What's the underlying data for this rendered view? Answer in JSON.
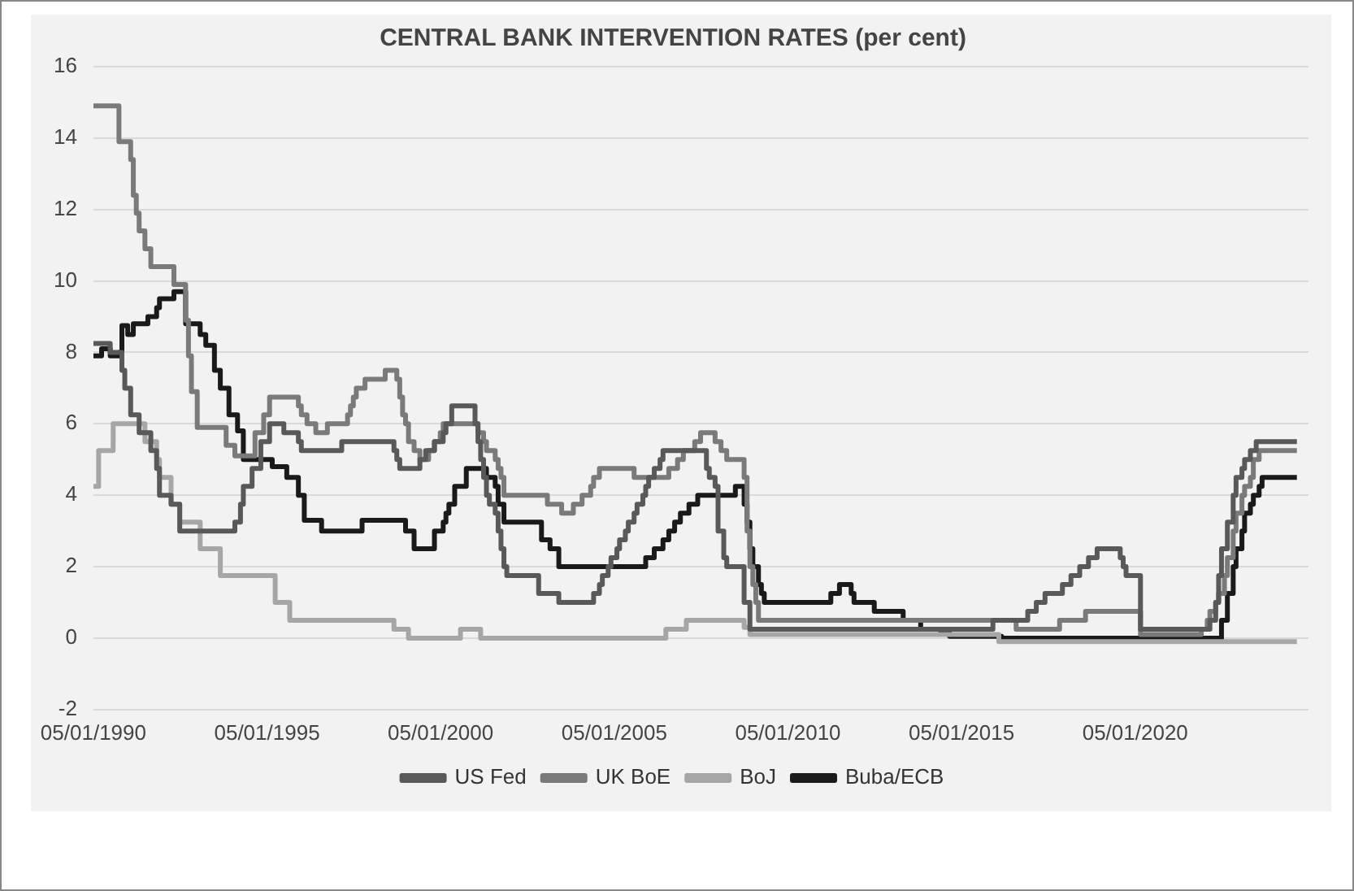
{
  "chart_data": {
    "type": "step",
    "title": "CENTRAL BANK INTERVENTION RATES (per cent)",
    "xlim": [
      "1990-01-05",
      "2025-01-01"
    ],
    "xticks": [
      {
        "value": "1990-01-05",
        "label": "05/01/1990"
      },
      {
        "value": "1995-01-05",
        "label": "05/01/1995"
      },
      {
        "value": "2000-01-05",
        "label": "05/01/2000"
      },
      {
        "value": "2005-01-05",
        "label": "05/01/2005"
      },
      {
        "value": "2010-01-05",
        "label": "05/01/2010"
      },
      {
        "value": "2015-01-05",
        "label": "05/01/2015"
      },
      {
        "value": "2020-01-05",
        "label": "05/01/2020"
      }
    ],
    "ylim": [
      -2,
      16
    ],
    "yticks": [
      -2,
      0,
      2,
      4,
      6,
      8,
      10,
      12,
      14,
      16
    ],
    "grid": "y",
    "legend": "bottom",
    "marker": "none",
    "line_style": "solid",
    "series": [
      {
        "name": "US Fed",
        "color": "#595959",
        "x": [
          "1990-01-05",
          "1990-07",
          "1990-11",
          "1990-12",
          "1991-02",
          "1991-05",
          "1991-09",
          "1991-11",
          "1991-12",
          "1992-04",
          "1992-07",
          "1994-02",
          "1994-04",
          "1994-05",
          "1994-08",
          "1994-11",
          "1995-02",
          "1995-07",
          "1995-12",
          "1996-01",
          "1997-03",
          "1998-09",
          "1998-10",
          "1998-11",
          "1999-06",
          "1999-08",
          "1999-11",
          "2000-02",
          "2000-03",
          "2000-05",
          "2001-01",
          "2001-02",
          "2001-03",
          "2001-04",
          "2001-05",
          "2001-06",
          "2001-08",
          "2001-09",
          "2001-10",
          "2001-11",
          "2001-12",
          "2002-11",
          "2003-06",
          "2004-06",
          "2004-08",
          "2004-09",
          "2004-11",
          "2004-12",
          "2005-02",
          "2005-03",
          "2005-05",
          "2005-06",
          "2005-08",
          "2005-09",
          "2005-11",
          "2005-12",
          "2006-01",
          "2006-03",
          "2006-05",
          "2006-06",
          "2007-09",
          "2007-10",
          "2007-12",
          "2008-01",
          "2008-03",
          "2008-04",
          "2008-10",
          "2008-12",
          "2015-12",
          "2016-12",
          "2017-03",
          "2017-06",
          "2017-12",
          "2018-03",
          "2018-06",
          "2018-09",
          "2018-12",
          "2019-08",
          "2019-09",
          "2019-10",
          "2020-03",
          "2022-03",
          "2022-05",
          "2022-06",
          "2022-07",
          "2022-09",
          "2022-11",
          "2022-12",
          "2023-02",
          "2023-03",
          "2023-05",
          "2023-07",
          "2024-09"
        ],
        "values": [
          8.25,
          8,
          7.5,
          7,
          6.25,
          5.75,
          5.25,
          4.75,
          4,
          3.75,
          3,
          3.25,
          3.75,
          4.25,
          4.75,
          5.5,
          6,
          5.75,
          5.5,
          5.25,
          5.5,
          5.25,
          5,
          4.75,
          5,
          5.25,
          5.5,
          5.75,
          6,
          6.5,
          6,
          5.5,
          5,
          4.5,
          4,
          3.75,
          3.5,
          3,
          2.5,
          2,
          1.75,
          1.25,
          1,
          1.25,
          1.5,
          1.75,
          2,
          2.25,
          2.5,
          2.75,
          3,
          3.25,
          3.5,
          3.75,
          4,
          4.25,
          4.5,
          4.75,
          5,
          5.25,
          4.75,
          4.5,
          4.25,
          3,
          2.25,
          2,
          1,
          0.25,
          0.5,
          0.75,
          1,
          1.25,
          1.5,
          1.75,
          2,
          2.25,
          2.5,
          2.25,
          2,
          1.75,
          0.25,
          0.5,
          1,
          1.75,
          2.5,
          3.25,
          4,
          4.5,
          4.75,
          5,
          5.25,
          5.5,
          5.5
        ]
      },
      {
        "name": "UK BoE",
        "color": "#7a7a7a",
        "x": [
          "1990-01-05",
          "1990-10",
          "1991-02",
          "1991-03",
          "1991-04",
          "1991-05",
          "1991-07",
          "1991-09",
          "1992-05",
          "1992-09",
          "1992-10",
          "1992-11",
          "1993-01",
          "1993-11",
          "1994-02",
          "1994-09",
          "1994-12",
          "1995-02",
          "1995-12",
          "1996-01",
          "1996-03",
          "1996-06",
          "1996-10",
          "1997-05",
          "1997-06",
          "1997-07",
          "1997-08",
          "1997-11",
          "1998-06",
          "1998-10",
          "1998-11",
          "1998-12",
          "1999-01",
          "1999-02",
          "1999-04",
          "1999-06",
          "1999-09",
          "1999-11",
          "2000-01",
          "2000-02",
          "2001-02",
          "2001-04",
          "2001-05",
          "2001-08",
          "2001-09",
          "2001-10",
          "2001-11",
          "2003-02",
          "2003-07",
          "2003-11",
          "2004-02",
          "2004-05",
          "2004-06",
          "2004-08",
          "2005-08",
          "2006-08",
          "2006-11",
          "2007-01",
          "2007-05",
          "2007-07",
          "2007-12",
          "2008-02",
          "2008-04",
          "2008-10",
          "2008-11",
          "2008-12",
          "2009-01",
          "2009-02",
          "2009-03",
          "2016-08",
          "2017-11",
          "2018-08",
          "2020-03",
          "2021-12",
          "2022-02",
          "2022-03",
          "2022-05",
          "2022-06",
          "2022-08",
          "2022-09",
          "2022-11",
          "2022-12",
          "2023-02",
          "2023-03",
          "2023-05",
          "2023-06",
          "2023-08",
          "2024-09"
        ],
        "values": [
          14.9,
          13.9,
          13.4,
          12.4,
          11.9,
          11.4,
          10.9,
          10.4,
          9.9,
          8.9,
          7.9,
          6.9,
          5.9,
          5.4,
          5.1,
          5.75,
          6.25,
          6.75,
          6.5,
          6.25,
          6,
          5.75,
          6,
          6.25,
          6.5,
          6.75,
          7,
          7.25,
          7.5,
          7.25,
          6.75,
          6.25,
          6,
          5.5,
          5.25,
          5,
          5.25,
          5.5,
          5.75,
          6,
          5.75,
          5.5,
          5.25,
          5,
          4.75,
          4.5,
          4,
          3.75,
          3.5,
          3.75,
          4,
          4.25,
          4.5,
          4.75,
          4.5,
          4.75,
          5,
          5.25,
          5.5,
          5.75,
          5.5,
          5.25,
          5,
          4.5,
          3,
          2,
          1.5,
          1,
          0.5,
          0.25,
          0.5,
          0.75,
          0.1,
          0.25,
          0.5,
          0.75,
          1,
          1.25,
          1.75,
          2.25,
          3,
          3.5,
          4,
          4.25,
          4.5,
          5,
          5.25,
          5.25
        ]
      },
      {
        "name": "BoJ",
        "color": "#a6a6a6",
        "x": [
          "1990-01-05",
          "1990-03",
          "1990-08",
          "1991-07",
          "1991-11",
          "1991-12",
          "1992-04",
          "1992-07",
          "1993-02",
          "1993-09",
          "1995-04",
          "1995-09",
          "1998-09",
          "1999-02",
          "2000-08",
          "2001-03",
          "2006-07",
          "2007-02",
          "2008-10",
          "2008-12",
          "2016-02",
          "2024-09"
        ],
        "values": [
          4.25,
          5.25,
          6,
          5.5,
          5,
          4.5,
          3.75,
          3.25,
          2.5,
          1.75,
          1,
          0.5,
          0.25,
          0,
          0.25,
          0,
          0.25,
          0.5,
          0.3,
          0.1,
          -0.1,
          -0.1
        ]
      },
      {
        "name": "Buba/ECB",
        "color": "#1a1a1a",
        "x": [
          "1990-01-05",
          "1990-04",
          "1990-07",
          "1990-10",
          "1990-11",
          "1991-01",
          "1991-03",
          "1991-08",
          "1991-11",
          "1991-12",
          "1992-05",
          "1992-09",
          "1993-02",
          "1993-04",
          "1993-07",
          "1993-09",
          "1993-12",
          "1994-03",
          "1994-05",
          "1995-03",
          "1995-08",
          "1995-12",
          "1996-02",
          "1996-08",
          "1997-10",
          "1999-01",
          "1999-04",
          "1999-11",
          "2000-02",
          "2000-03",
          "2000-04",
          "2000-06",
          "2000-10",
          "2001-05",
          "2001-08",
          "2001-09",
          "2001-11",
          "2002-12",
          "2003-03",
          "2003-06",
          "2005-12",
          "2006-03",
          "2006-06",
          "2006-08",
          "2006-10",
          "2006-12",
          "2007-03",
          "2007-06",
          "2008-07",
          "2008-10",
          "2008-11",
          "2008-12",
          "2009-01",
          "2009-03",
          "2009-04",
          "2009-05",
          "2011-04",
          "2011-07",
          "2011-11",
          "2011-12",
          "2012-07",
          "2013-05",
          "2013-11",
          "2014-06",
          "2014-09",
          "2016-03",
          "2022-07",
          "2022-09",
          "2022-11",
          "2022-12",
          "2023-02",
          "2023-03",
          "2023-05",
          "2023-06",
          "2023-08",
          "2023-09",
          "2024-09"
        ],
        "values": [
          7.9,
          8.1,
          7.9,
          8,
          8.75,
          8.5,
          8.8,
          9,
          9.25,
          9.5,
          9.7,
          8.8,
          8.5,
          8.2,
          7.5,
          7,
          6.25,
          5.8,
          5,
          4.8,
          4.5,
          4,
          3.3,
          3,
          3.3,
          3,
          2.5,
          3,
          3.25,
          3.5,
          3.75,
          4.25,
          4.75,
          4.5,
          4.25,
          3.75,
          3.25,
          2.75,
          2.5,
          2,
          2.25,
          2.5,
          2.75,
          3,
          3.25,
          3.5,
          3.75,
          4,
          4.25,
          3.75,
          3.25,
          2.5,
          2,
          1.5,
          1.25,
          1,
          1.25,
          1.5,
          1.25,
          1,
          0.75,
          0.5,
          0.25,
          0.15,
          0.05,
          0,
          0.5,
          1.25,
          2,
          2.5,
          3,
          3.5,
          3.75,
          4,
          4.25,
          4.5,
          4.5
        ]
      }
    ]
  }
}
